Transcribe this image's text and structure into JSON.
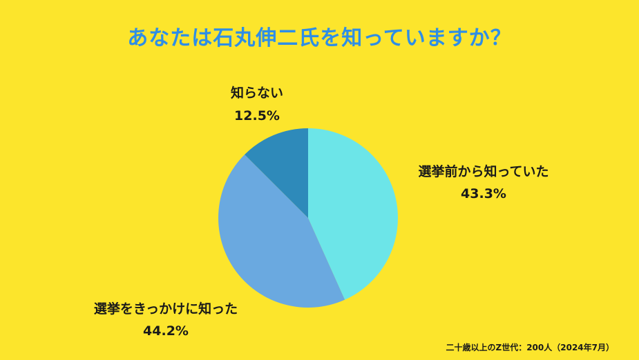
{
  "title": "あなたは石丸伸二氏を知っていますか？",
  "footnote": "二十歳以上のZ世代：200人（2024年7月）",
  "colors": {
    "background": "#FCE52C",
    "title": "#2E8EE6",
    "text": "#1A1A1A"
  },
  "chart_data": {
    "type": "pie",
    "title": "あなたは石丸伸二氏を知っていますか？",
    "start": "12 o'clock",
    "direction": "clockwise",
    "slices": [
      {
        "label": "選挙前から知っていた",
        "value": 43.3,
        "value_label": "43.3%",
        "color": "#6CE5E8"
      },
      {
        "label": "選挙をきっかけに知った",
        "value": 44.2,
        "value_label": "44.2%",
        "color": "#6AA9E0"
      },
      {
        "label": "知らない",
        "value": 12.5,
        "value_label": "12.5%",
        "color": "#2E8ABA"
      }
    ]
  }
}
